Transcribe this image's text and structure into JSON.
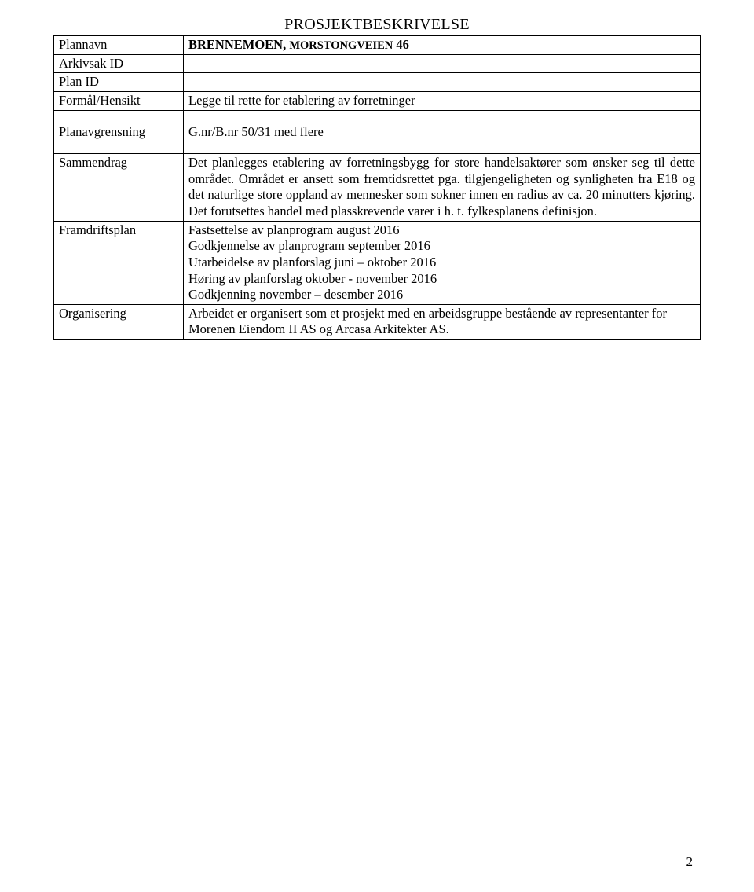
{
  "title": "PROSJEKTBESKRIVELSE",
  "rows": {
    "plannavn_label": "Plannavn",
    "plannavn_value_pre": "BRENNEMOEN, ",
    "plannavn_value_caps": "MORSTONGVEIEN",
    "plannavn_value_post": " 46",
    "arkivsak_label": "Arkivsak ID",
    "arkivsak_value": "",
    "planid_label": "Plan ID",
    "planid_value": "",
    "formal_label": "Formål/Hensikt",
    "formal_value": "Legge til rette for etablering av forretninger",
    "planavgrensning_label": "Planavgrensning",
    "planavgrensning_value": "G.nr/B.nr 50/31 med flere",
    "sammendrag_label": "Sammendrag",
    "sammendrag_value": "Det planlegges etablering av forretningsbygg for store handelsaktører som ønsker seg til dette området. Området er ansett som fremtidsrettet pga. tilgjengeligheten og synligheten fra E18 og det naturlige store oppland av mennesker som sokner innen en radius av ca. 20 minutters kjøring. Det forutsettes handel med plasskrevende varer i h. t. fylkesplanens definisjon.",
    "framdrift_label": "Framdriftsplan",
    "framdrift_line1": "Fastsettelse av planprogram august 2016",
    "framdrift_line2": "Godkjennelse av planprogram september 2016",
    "framdrift_line3": "Utarbeidelse av planforslag juni – oktober 2016",
    "framdrift_line4": "Høring av planforslag oktober - november 2016",
    "framdrift_line5": "Godkjenning november – desember 2016",
    "organisering_label": "Organisering",
    "organisering_value": "Arbeidet er organisert som et prosjekt med en arbeidsgruppe bestående av representanter for Morenen Eiendom II AS og Arcasa Arkitekter AS."
  },
  "page_number": "2"
}
